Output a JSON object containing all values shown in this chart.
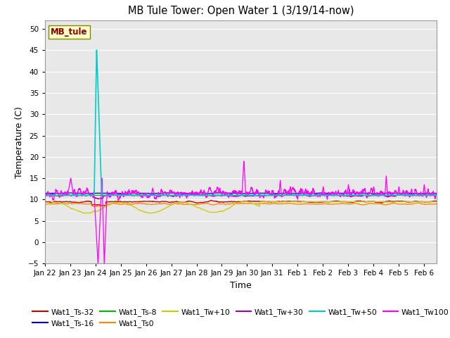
{
  "title": "MB Tule Tower: Open Water 1 (3/19/14-now)",
  "ylabel": "Temperature (C)",
  "xlabel": "Time",
  "ylim": [
    -5,
    52
  ],
  "yticks": [
    -5,
    0,
    5,
    10,
    15,
    20,
    25,
    30,
    35,
    40,
    45,
    50
  ],
  "bg_color": "#e8e8e8",
  "legend_label": "MB_tule",
  "series_colors": {
    "Wat1_Ts-32": "#cc0000",
    "Wat1_Ts-16": "#0000cc",
    "Wat1_Ts-8": "#00bb00",
    "Wat1_Ts0": "#ff8800",
    "Wat1_Tw+10": "#cccc00",
    "Wat1_Tw+30": "#aa00aa",
    "Wat1_Tw+50": "#00cccc",
    "Wat1_Tw100": "#ff00ff"
  },
  "x_tick_labels": [
    "Jan 22",
    "Jan 23",
    "Jan 24",
    "Jan 25",
    "Jan 26",
    "Jan 27",
    "Jan 28",
    "Jan 29",
    "Jan 30",
    "Jan 31",
    "Feb 1",
    "Feb 2",
    "Feb 3",
    "Feb 4",
    "Feb 5",
    "Feb 6"
  ],
  "x_tick_positions": [
    0,
    1,
    2,
    3,
    4,
    5,
    6,
    7,
    8,
    9,
    10,
    11,
    12,
    13,
    14,
    15
  ],
  "xlim": [
    0,
    15.5
  ]
}
